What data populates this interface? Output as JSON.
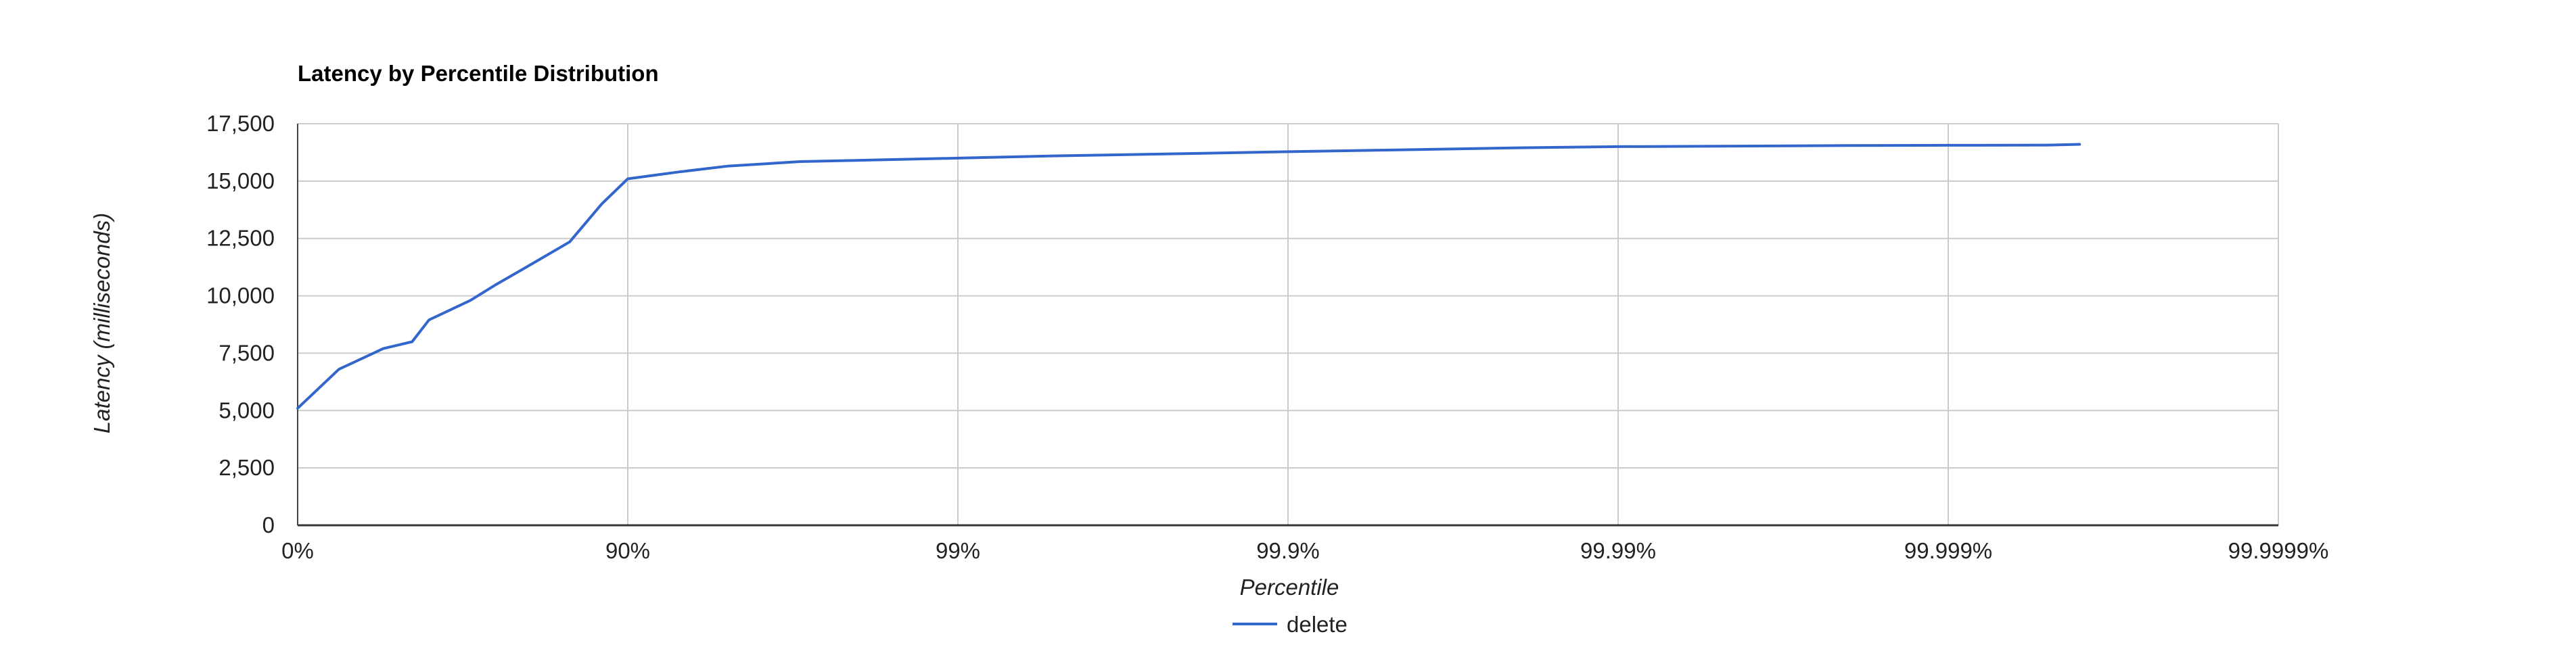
{
  "chart_data": {
    "type": "line",
    "title": "Latency by Percentile Distribution",
    "xlabel": "Percentile",
    "ylabel": "Latency (milliseconds)",
    "x_scale": "log-percentile",
    "x_ticks": [
      "0%",
      "90%",
      "99%",
      "99.9%",
      "99.99%",
      "99.999%",
      "99.9999%"
    ],
    "y_ticks": [
      "0",
      "2,500",
      "5,000",
      "7,500",
      "10,000",
      "12,500",
      "15,000",
      "17,500"
    ],
    "ylim": [
      0,
      17500
    ],
    "grid": true,
    "legend_position": "bottom",
    "series": [
      {
        "name": "delete",
        "color": "#3366cc",
        "points": [
          {
            "x": "0%",
            "y": 5100
          },
          {
            "x": "25%",
            "y": 6800
          },
          {
            "x": "45%",
            "y": 7700
          },
          {
            "x": "55%",
            "y": 8000
          },
          {
            "x": "60%",
            "y": 8950
          },
          {
            "x": "70%",
            "y": 9800
          },
          {
            "x": "75%",
            "y": 10500
          },
          {
            "x": "80%",
            "y": 11300
          },
          {
            "x": "85%",
            "y": 12350
          },
          {
            "x": "88%",
            "y": 14000
          },
          {
            "x": "90%",
            "y": 15100
          },
          {
            "x": "93%",
            "y": 15400
          },
          {
            "x": "95%",
            "y": 15650
          },
          {
            "x": "97%",
            "y": 15850
          },
          {
            "x": "99%",
            "y": 16000
          },
          {
            "x": "99.5%",
            "y": 16100
          },
          {
            "x": "99.8%",
            "y": 16200
          },
          {
            "x": "99.9%",
            "y": 16280
          },
          {
            "x": "99.95%",
            "y": 16350
          },
          {
            "x": "99.98%",
            "y": 16450
          },
          {
            "x": "99.99%",
            "y": 16500
          },
          {
            "x": "99.995%",
            "y": 16520
          },
          {
            "x": "99.998%",
            "y": 16550
          },
          {
            "x": "99.999%",
            "y": 16560
          },
          {
            "x": "99.9995%",
            "y": 16570
          },
          {
            "x": "99.9996%",
            "y": 16600
          }
        ]
      }
    ]
  }
}
